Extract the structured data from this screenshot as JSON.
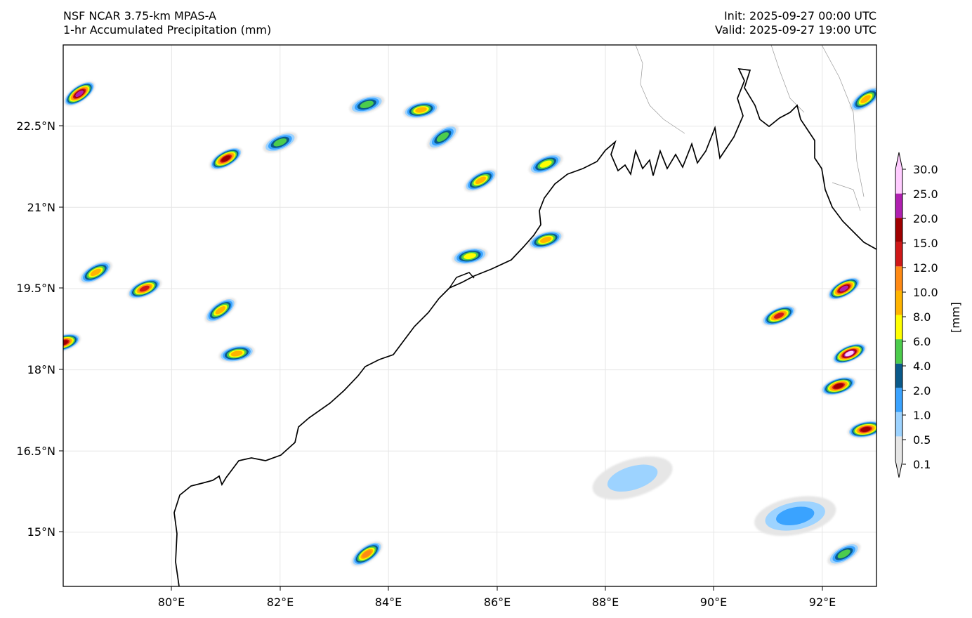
{
  "header": {
    "model": "NSF NCAR 3.75-km MPAS-A",
    "field": "1-hr Accumulated Precipitation (mm)",
    "init": "Init: 2025-09-27 00:00 UTC",
    "valid": "Valid: 2025-09-27 19:00 UTC"
  },
  "map": {
    "extent": {
      "lon": [
        78.0,
        93.0
      ],
      "lat": [
        14.0,
        24.0
      ]
    },
    "lon_ticks": [
      80,
      82,
      84,
      86,
      88,
      90,
      92
    ],
    "lon_labels": [
      "80°E",
      "82°E",
      "84°E",
      "86°E",
      "88°E",
      "90°E",
      "92°E"
    ],
    "lat_ticks": [
      15,
      16.5,
      18,
      19.5,
      21,
      22.5
    ],
    "lat_labels": [
      "15°N",
      "16.5°N",
      "18°N",
      "19.5°N",
      "21°N",
      "22.5°N"
    ],
    "gridlines": true
  },
  "colorbar": {
    "unit_label": "[mm]",
    "levels": [
      "0.1",
      "0.5",
      "1.0",
      "2.0",
      "4.0",
      "6.0",
      "8.0",
      "10.0",
      "12.0",
      "15.0",
      "20.0",
      "25.0",
      "30.0"
    ],
    "colors": [
      "#e6e6e6",
      "#9dd3ff",
      "#3aa3ff",
      "#0a5a8a",
      "#4ccc4c",
      "#ffff00",
      "#ffb400",
      "#ff8a14",
      "#d01818",
      "#a00000",
      "#b020b0",
      "#ffccff"
    ],
    "extend": "both"
  },
  "chart_data": {
    "type": "heatmap",
    "title": "1-hr Accumulated Precipitation (mm)",
    "xlabel": "",
    "ylabel": "",
    "x_range_deg_E": [
      78.0,
      93.0
    ],
    "y_range_deg_N": [
      14.0,
      24.0
    ],
    "precip_cells": [
      {
        "lon": 78.3,
        "lat": 23.1,
        "mm": 20
      },
      {
        "lon": 78.6,
        "lat": 19.8,
        "mm": 8
      },
      {
        "lon": 79.5,
        "lat": 19.5,
        "mm": 12
      },
      {
        "lon": 78.0,
        "lat": 18.5,
        "mm": 15
      },
      {
        "lon": 81.2,
        "lat": 18.3,
        "mm": 8
      },
      {
        "lon": 80.9,
        "lat": 19.1,
        "mm": 8
      },
      {
        "lon": 81.0,
        "lat": 21.9,
        "mm": 15
      },
      {
        "lon": 82.0,
        "lat": 22.2,
        "mm": 4
      },
      {
        "lon": 83.6,
        "lat": 22.9,
        "mm": 4
      },
      {
        "lon": 84.6,
        "lat": 22.8,
        "mm": 8
      },
      {
        "lon": 85.0,
        "lat": 22.3,
        "mm": 4
      },
      {
        "lon": 85.7,
        "lat": 21.5,
        "mm": 8
      },
      {
        "lon": 86.9,
        "lat": 21.8,
        "mm": 6
      },
      {
        "lon": 86.9,
        "lat": 20.4,
        "mm": 8
      },
      {
        "lon": 85.5,
        "lat": 20.1,
        "mm": 6
      },
      {
        "lon": 83.6,
        "lat": 14.6,
        "mm": 10
      },
      {
        "lon": 92.4,
        "lat": 19.5,
        "mm": 20
      },
      {
        "lon": 92.5,
        "lat": 18.3,
        "mm": 30
      },
      {
        "lon": 92.3,
        "lat": 17.7,
        "mm": 15
      },
      {
        "lon": 92.8,
        "lat": 16.9,
        "mm": 15
      },
      {
        "lon": 92.8,
        "lat": 23.0,
        "mm": 8
      },
      {
        "lon": 92.4,
        "lat": 14.6,
        "mm": 4
      },
      {
        "lon": 91.2,
        "lat": 19.0,
        "mm": 12
      },
      {
        "lon": 88.5,
        "lat": 16.0,
        "mm": 0.5
      },
      {
        "lon": 91.5,
        "lat": 15.3,
        "mm": 1
      }
    ]
  }
}
